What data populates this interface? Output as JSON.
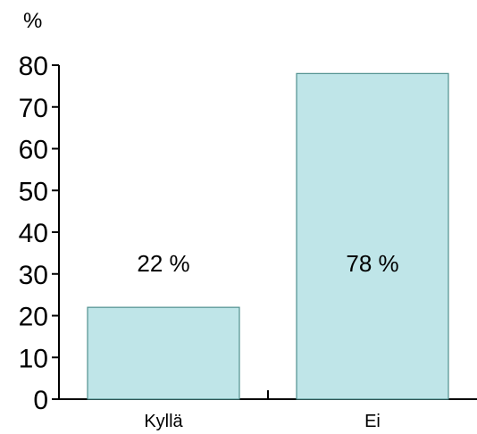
{
  "chart_data": {
    "type": "bar",
    "title": "",
    "unit_label": "%",
    "xlabel": "",
    "ylabel": "",
    "categories": [
      "Kyllä",
      "Ei"
    ],
    "values": [
      22,
      78
    ],
    "data_labels": [
      "22 %",
      "78 %"
    ],
    "ylim": [
      0,
      80
    ],
    "yticks": [
      0,
      10,
      20,
      30,
      40,
      50,
      60,
      70,
      80
    ],
    "ytick_labels": [
      "0",
      "10",
      "20",
      "30",
      "40",
      "50",
      "60",
      "70",
      "80"
    ],
    "grid": false,
    "legend": "none",
    "colors": {
      "bar_fill": "#bfe5e8",
      "bar_stroke": "#4f8f8e",
      "axis": "#000000"
    }
  }
}
